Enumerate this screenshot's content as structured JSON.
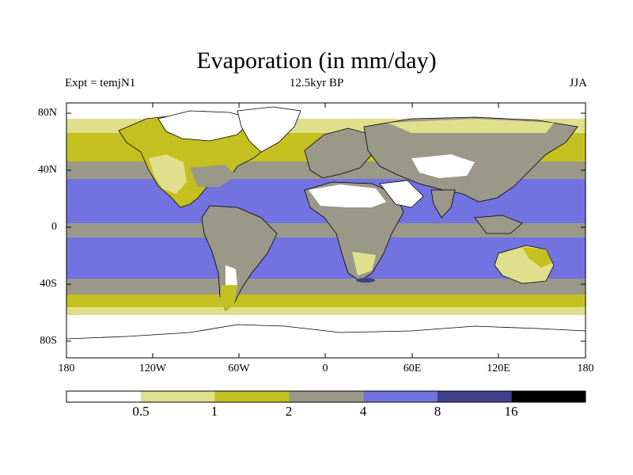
{
  "title": "Evaporation (in mm/day)",
  "subtitle_left": "Expt = temjN1",
  "subtitle_center": "12.5kyr BP",
  "subtitle_right": "JJA",
  "y_axis_labels": [
    "80N",
    "40N",
    "0",
    "40S",
    "80S"
  ],
  "x_axis_labels": [
    "180",
    "120W",
    "60W",
    "0",
    "60E",
    "120E",
    "180"
  ],
  "colorbar": {
    "levels": [
      "0.5",
      "1",
      "2",
      "4",
      "8",
      "16"
    ],
    "colors": [
      "#ffffff",
      "#e0e08c",
      "#c4c020",
      "#9a9888",
      "#7272e0",
      "#40408c",
      "#000000"
    ]
  },
  "colors": {
    "ocean_tropical": "#7272e0",
    "ocean_midlat": "#9a9888",
    "ocean_subpolar": "#c4c020",
    "ocean_polar": "#e0e08c",
    "ice": "#ffffff",
    "land_dry": "#ffffff",
    "land_semi": "#e0e08c",
    "land_moist": "#c4c020",
    "land_wet": "#9a9888",
    "coast": "#000000"
  }
}
